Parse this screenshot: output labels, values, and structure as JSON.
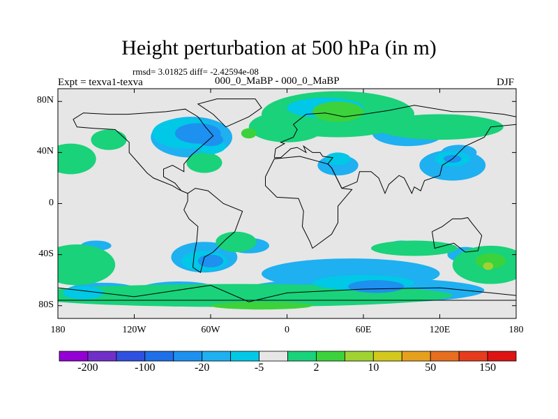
{
  "title": "Height perturbation at 500 hPa (in m)",
  "stats": "rmsd= 3.01825 diff= -2.42594e-08",
  "left_label": "Expt = texva1-texva",
  "center_label": "000_0_MaBP - 000_0_MaBP",
  "right_label": "DJF",
  "lat_ticks": [
    {
      "label": "80N",
      "lat": 80
    },
    {
      "label": "40N",
      "lat": 40
    },
    {
      "label": "0",
      "lat": 0
    },
    {
      "label": "40S",
      "lat": -40
    },
    {
      "label": "80S",
      "lat": -80
    }
  ],
  "lon_ticks": [
    {
      "label": "180",
      "lon": -180
    },
    {
      "label": "120W",
      "lon": -120
    },
    {
      "label": "60W",
      "lon": -60
    },
    {
      "label": "0",
      "lon": 0
    },
    {
      "label": "60E",
      "lon": 60
    },
    {
      "label": "120E",
      "lon": 120
    },
    {
      "label": "180",
      "lon": 180
    }
  ],
  "colorbar": {
    "colors": [
      "#9400d3",
      "#7030c8",
      "#3050e0",
      "#1e6fe8",
      "#1e90f0",
      "#1eb0f0",
      "#00c8e6",
      "#e6e6e6",
      "#19d27a",
      "#3cd23c",
      "#a0d232",
      "#d2c81e",
      "#e6a01e",
      "#e66e1e",
      "#e63c1e",
      "#dc1414"
    ],
    "labels": [
      "-200",
      "-100",
      "-20",
      "-5",
      "2",
      "10",
      "50",
      "150"
    ]
  },
  "fields": [
    {
      "color": "#1eb0f0",
      "ellipses": [
        [
          -75,
          52,
          32,
          16
        ],
        [
          -10,
          58,
          14,
          8
        ],
        [
          40,
          64,
          12,
          6
        ],
        [
          95,
          55,
          28,
          10
        ],
        [
          130,
          30,
          26,
          12
        ],
        [
          135,
          40,
          14,
          6
        ],
        [
          40,
          30,
          16,
          8
        ],
        [
          90,
          -33,
          10,
          4
        ],
        [
          140,
          -40,
          14,
          6
        ],
        [
          -30,
          -33,
          16,
          6
        ],
        [
          -150,
          -33,
          12,
          4
        ],
        [
          -65,
          -42,
          26,
          12
        ],
        [
          -145,
          -68,
          28,
          6
        ],
        [
          -85,
          -68,
          32,
          7
        ],
        [
          50,
          -55,
          70,
          12
        ],
        [
          60,
          -68,
          95,
          10
        ]
      ]
    },
    {
      "color": "#19d27a",
      "ellipses": [
        [
          40,
          70,
          60,
          18
        ],
        [
          0,
          60,
          30,
          12
        ],
        [
          120,
          60,
          50,
          10
        ],
        [
          -140,
          50,
          14,
          8
        ],
        [
          -170,
          35,
          20,
          12
        ],
        [
          -65,
          32,
          14,
          8
        ],
        [
          -40,
          -30,
          16,
          8
        ],
        [
          -165,
          -48,
          30,
          16
        ],
        [
          100,
          -35,
          34,
          6
        ],
        [
          -40,
          -72,
          170,
          9
        ],
        [
          160,
          -48,
          30,
          15
        ]
      ]
    },
    {
      "color": "#00c8e6",
      "ellipses": [
        [
          -80,
          55,
          26,
          12
        ],
        [
          -60,
          45,
          12,
          6
        ],
        [
          30,
          75,
          30,
          8
        ],
        [
          -160,
          -70,
          16,
          5
        ],
        [
          60,
          -62,
          40,
          6
        ],
        [
          -65,
          -45,
          18,
          8
        ],
        [
          130,
          35,
          14,
          6
        ],
        [
          40,
          35,
          10,
          5
        ]
      ]
    },
    {
      "color": "#1e90f0",
      "ellipses": [
        [
          -70,
          55,
          18,
          8
        ],
        [
          -60,
          50,
          10,
          5
        ],
        [
          -60,
          -45,
          10,
          5
        ],
        [
          70,
          -65,
          22,
          5
        ],
        [
          130,
          35,
          7,
          3
        ]
      ]
    },
    {
      "color": "#3cd23c",
      "ellipses": [
        [
          40,
          72,
          20,
          8
        ],
        [
          -30,
          55,
          6,
          4
        ],
        [
          -20,
          -80,
          40,
          3
        ],
        [
          160,
          -45,
          12,
          6
        ]
      ]
    },
    {
      "color": "#a0d232",
      "ellipses": [
        [
          158,
          -49,
          4,
          3
        ]
      ]
    }
  ],
  "continents": [
    [
      [
        -168,
        66
      ],
      [
        -160,
        71
      ],
      [
        -140,
        70
      ],
      [
        -125,
        70
      ],
      [
        -95,
        72
      ],
      [
        -80,
        74
      ],
      [
        -70,
        68
      ],
      [
        -64,
        60
      ],
      [
        -58,
        53
      ],
      [
        -67,
        45
      ],
      [
        -75,
        38
      ],
      [
        -81,
        31
      ],
      [
        -81,
        25
      ],
      [
        -90,
        30
      ],
      [
        -97,
        27
      ],
      [
        -97,
        21
      ],
      [
        -88,
        16
      ],
      [
        -83,
        10
      ],
      [
        -78,
        8
      ],
      [
        -85,
        11
      ],
      [
        -90,
        14
      ],
      [
        -105,
        20
      ],
      [
        -110,
        24
      ],
      [
        -117,
        32
      ],
      [
        -124,
        40
      ],
      [
        -124,
        48
      ],
      [
        -135,
        58
      ],
      [
        -152,
        59
      ],
      [
        -165,
        60
      ],
      [
        -168,
        66
      ]
    ],
    [
      [
        -78,
        8
      ],
      [
        -72,
        12
      ],
      [
        -62,
        10
      ],
      [
        -50,
        0
      ],
      [
        -35,
        -6
      ],
      [
        -38,
        -14
      ],
      [
        -41,
        -22
      ],
      [
        -48,
        -28
      ],
      [
        -58,
        -38
      ],
      [
        -65,
        -42
      ],
      [
        -68,
        -54
      ],
      [
        -74,
        -50
      ],
      [
        -73,
        -40
      ],
      [
        -71,
        -30
      ],
      [
        -70,
        -18
      ],
      [
        -77,
        -12
      ],
      [
        -81,
        -5
      ],
      [
        -78,
        2
      ],
      [
        -78,
        8
      ]
    ],
    [
      [
        -48,
        60
      ],
      [
        -30,
        68
      ],
      [
        -20,
        75
      ],
      [
        -25,
        82
      ],
      [
        -55,
        82
      ],
      [
        -70,
        78
      ],
      [
        -58,
        70
      ],
      [
        -48,
        60
      ]
    ],
    [
      [
        -10,
        36
      ],
      [
        -9,
        43
      ],
      [
        -2,
        47
      ],
      [
        -5,
        48
      ],
      [
        5,
        52
      ],
      [
        8,
        58
      ],
      [
        5,
        62
      ],
      [
        15,
        70
      ],
      [
        30,
        71
      ],
      [
        45,
        68
      ],
      [
        60,
        70
      ],
      [
        80,
        73
      ],
      [
        100,
        77
      ],
      [
        130,
        72
      ],
      [
        150,
        72
      ],
      [
        170,
        70
      ],
      [
        180,
        68
      ],
      [
        180,
        62
      ],
      [
        160,
        60
      ],
      [
        155,
        52
      ],
      [
        140,
        45
      ],
      [
        130,
        35
      ],
      [
        122,
        30
      ],
      [
        120,
        22
      ],
      [
        108,
        18
      ],
      [
        105,
        10
      ],
      [
        100,
        13
      ],
      [
        98,
        8
      ],
      [
        92,
        20
      ],
      [
        88,
        22
      ],
      [
        80,
        15
      ],
      [
        77,
        8
      ],
      [
        72,
        20
      ],
      [
        66,
        25
      ],
      [
        57,
        25
      ],
      [
        55,
        17
      ],
      [
        43,
        12
      ],
      [
        35,
        28
      ],
      [
        32,
        31
      ],
      [
        36,
        36
      ],
      [
        28,
        37
      ],
      [
        26,
        40
      ],
      [
        20,
        40
      ],
      [
        13,
        45
      ],
      [
        15,
        40
      ],
      [
        8,
        44
      ],
      [
        3,
        43
      ],
      [
        -5,
        36
      ],
      [
        -10,
        36
      ]
    ],
    [
      [
        -17,
        21
      ],
      [
        -10,
        35
      ],
      [
        10,
        37
      ],
      [
        32,
        31
      ],
      [
        35,
        28
      ],
      [
        43,
        12
      ],
      [
        51,
        11
      ],
      [
        40,
        -2
      ],
      [
        40,
        -15
      ],
      [
        35,
        -24
      ],
      [
        20,
        -35
      ],
      [
        18,
        -30
      ],
      [
        12,
        -18
      ],
      [
        13,
        -6
      ],
      [
        9,
        4
      ],
      [
        -8,
        5
      ],
      [
        -17,
        14
      ],
      [
        -17,
        21
      ]
    ],
    [
      [
        114,
        -22
      ],
      [
        122,
        -18
      ],
      [
        130,
        -12
      ],
      [
        137,
        -12
      ],
      [
        142,
        -11
      ],
      [
        145,
        -15
      ],
      [
        153,
        -25
      ],
      [
        150,
        -37
      ],
      [
        140,
        -38
      ],
      [
        131,
        -31
      ],
      [
        116,
        -35
      ],
      [
        114,
        -22
      ]
    ],
    [
      [
        -180,
        -66
      ],
      [
        -120,
        -73
      ],
      [
        -60,
        -64
      ],
      [
        -30,
        -77
      ],
      [
        0,
        -70
      ],
      [
        60,
        -67
      ],
      [
        120,
        -66
      ],
      [
        160,
        -70
      ],
      [
        180,
        -72
      ],
      [
        180,
        -90
      ],
      [
        -180,
        -90
      ],
      [
        -180,
        -66
      ]
    ]
  ]
}
